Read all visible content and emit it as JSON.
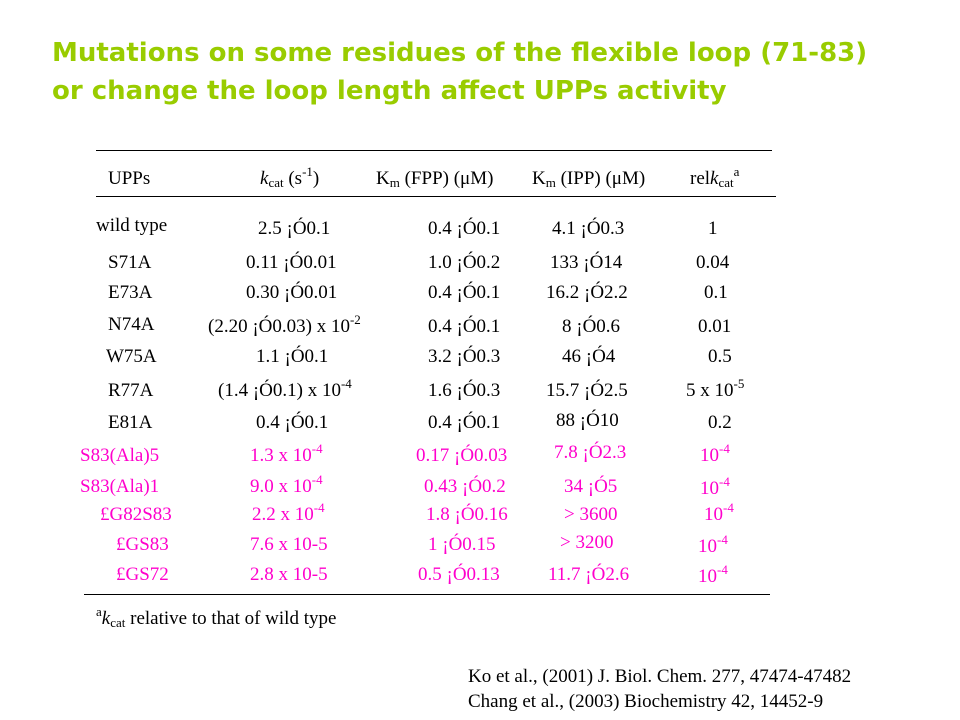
{
  "title": {
    "line1": "Mutations on some residues of the flexible loop (71-83)",
    "line2": "or change the loop length affect UPPs activity"
  },
  "table": {
    "header": {
      "col1": "UPPs",
      "kcat_k": "k",
      "kcat_sub": "cat",
      "kcat_unit": " (s",
      "kcat_exp": "-1",
      "kcat_close": ")",
      "km_fpp_k": "K",
      "km_fpp_sub": "m",
      "km_fpp_rest": " (FPP) (μM)",
      "km_ipp_k": "K",
      "km_ipp_sub": "m",
      "km_ipp_rest": " (IPP) (μM)",
      "rel_pre": "rel",
      "rel_k": "k",
      "rel_sub": "cat",
      "rel_sup": "a"
    },
    "rows": [
      {
        "name": "wild type",
        "kcat": "2.5 ¡Ó0.1",
        "km_fpp": "0.4 ¡Ó0.1",
        "km_ipp": "4.1 ¡Ó0.3",
        "rel": "1"
      },
      {
        "name": "S71A",
        "kcat": "0.11 ¡Ó0.01",
        "km_fpp": "1.0 ¡Ó0.2",
        "km_ipp": "133  ¡Ó14",
        "rel": "0.04"
      },
      {
        "name": "E73A",
        "kcat": "0.30 ¡Ó0.01",
        "km_fpp": "0.4 ¡Ó0.1",
        "km_ipp": "16.2 ¡Ó2.2",
        "rel": "0.1"
      },
      {
        "name": "N74A",
        "kcat": "(2.20 ¡Ó0.03) x 10",
        "kcat_exp": "-2",
        "km_fpp": "0.4 ¡Ó0.1",
        "km_ipp": "8 ¡Ó0.6",
        "rel": "0.01"
      },
      {
        "name": "W75A",
        "kcat": "1.1 ¡Ó0.1",
        "km_fpp": "3.2 ¡Ó0.3",
        "km_ipp": "46 ¡Ó4",
        "rel": "0.5"
      },
      {
        "name": "R77A",
        "kcat": "(1.4  ¡Ó0.1) x 10",
        "kcat_exp": "-4",
        "km_fpp": "1.6 ¡Ó0.3",
        "km_ipp": "15.7 ¡Ó2.5",
        "rel": "5 x 10",
        "rel_exp": "-5"
      },
      {
        "name": "E81A",
        "kcat": "0.4 ¡Ó0.1",
        "km_fpp": "0.4 ¡Ó0.1",
        "km_ipp": "88  ¡Ó10",
        "rel": "0.2"
      },
      {
        "name": "S83(Ala)5",
        "kcat": "1.3 x 10",
        "kcat_exp": "-4",
        "km_fpp": "0.17 ¡Ó0.03",
        "km_ipp": "7.8 ¡Ó2.3",
        "rel": "10",
        "rel_exp": "-4"
      },
      {
        "name": "S83(Ala)1",
        "kcat": "9.0 x 10",
        "kcat_exp": "-4",
        "km_fpp": "0.43 ¡Ó0.2",
        "km_ipp": "34 ¡Ó5",
        "rel": "10",
        "rel_exp": "-4"
      },
      {
        "name": "£G82S83",
        "kcat": "2.2 x 10",
        "kcat_exp": "-4",
        "km_fpp": "1.8 ¡Ó0.16",
        "km_ipp": "> 3600",
        "rel": "10",
        "rel_exp": "-4"
      },
      {
        "name": "£GS83",
        "kcat": "7.6 x 10-5",
        "km_fpp": "1 ¡Ó0.15",
        "km_ipp": "> 3200",
        "rel": "10",
        "rel_exp": "-4"
      },
      {
        "name": "£GS72",
        "kcat": "2.8 x 10-5",
        "km_fpp": "0.5 ¡Ó0.13",
        "km_ipp": "11.7 ¡Ó2.6",
        "rel": "10",
        "rel_exp": "-4"
      }
    ],
    "footnote": {
      "sup": "a",
      "k": "k",
      "sub": "cat",
      "text": " relative to that of wild type"
    }
  },
  "references": [
    "Ko et al., (2001) J. Biol. Chem. 277, 47474-47482",
    "Chang et al., (2003) Biochemistry 42, 14452-9"
  ],
  "colors": {
    "title": "#99cc00",
    "highlight_rows": "#ff00cc",
    "text": "#000000"
  }
}
